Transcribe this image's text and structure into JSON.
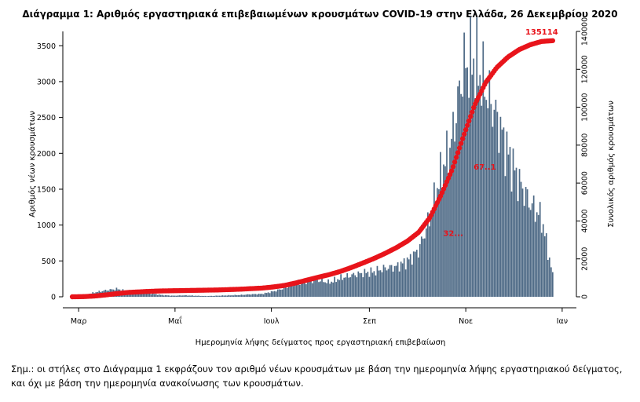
{
  "title": "Διάγραμμα 1: Αριθμός εργαστηριακά επιβεβαιωμένων κρουσμάτων COVID-19 στην Ελλάδα, 26 Δεκεμβρίου 2020",
  "note": "Σημ.: οι στήλες στο Διάγραμμα 1 εκφράζουν τον αριθμό νέων κρουσμάτων με βάση την ημερομηνία λήψης εργαστηριακού δείγματος, και όχι με βάση την ημερομηνία ανακοίνωσης των κρουσμάτων.",
  "colors": {
    "bars": "#4e6a86",
    "cumulative": "#e8141b",
    "annotation": "#e8141b"
  },
  "chart_data": {
    "type": "bar",
    "title": "Διάγραμμα 1: Αριθμός εργαστηριακά επιβεβαιωμένων κρουσμάτων COVID-19 στην Ελλάδα, 26 Δεκεμβρίου 2020",
    "xlabel": "Ημερομηνία λήψης δείγματος προς εργαστηριακή επιβεβαίωση",
    "ylabel": "Αριθμός νέων κρουσμάτων",
    "y2label": "Συνολικός αριθμός κρουσμάτων",
    "x_tick_labels": [
      "Μαρ",
      "Μαΐ",
      "Ιουλ",
      "Σεπ",
      "Νοε",
      "Ιαν"
    ],
    "ylim": [
      0,
      3700
    ],
    "yticks": [
      0,
      500,
      1000,
      1500,
      2000,
      2500,
      3000,
      3500
    ],
    "y2lim": [
      0,
      140000
    ],
    "y2ticks": [
      0,
      20000,
      40000,
      60000,
      80000,
      100000,
      120000,
      140000
    ],
    "grid": false,
    "legend": "none",
    "annotations": [
      "135114",
      "67..1",
      "32..."
    ],
    "series": [
      {
        "axis": "left",
        "kind": "bar",
        "x_range": [
          "2020-02-26",
          "2020-12-26"
        ],
        "weekly_values": [
          2,
          20,
          60,
          90,
          110,
          70,
          50,
          45,
          25,
          15,
          20,
          15,
          10,
          15,
          20,
          25,
          35,
          40,
          75,
          120,
          200,
          220,
          230,
          200,
          260,
          300,
          330,
          350,
          400,
          420,
          500,
          650,
          1100,
          1700,
          2200,
          3200,
          3300,
          2900,
          2500,
          2000,
          1600,
          1300,
          1100,
          300
        ]
      },
      {
        "axis": "right",
        "kind": "line",
        "x_range": [
          "2020-02-26",
          "2020-12-26"
        ],
        "weekly_values": [
          0,
          100,
          400,
          1000,
          1700,
          2300,
          2600,
          2900,
          3100,
          3200,
          3300,
          3400,
          3500,
          3600,
          3800,
          4000,
          4300,
          4600,
          5200,
          6000,
          7300,
          8800,
          10300,
          11700,
          13400,
          15500,
          17800,
          20200,
          22900,
          25900,
          29400,
          34000,
          41700,
          53600,
          67100,
          84500,
          101000,
          113000,
          121000,
          126500,
          130400,
          133000,
          134700,
          135114
        ]
      }
    ]
  }
}
